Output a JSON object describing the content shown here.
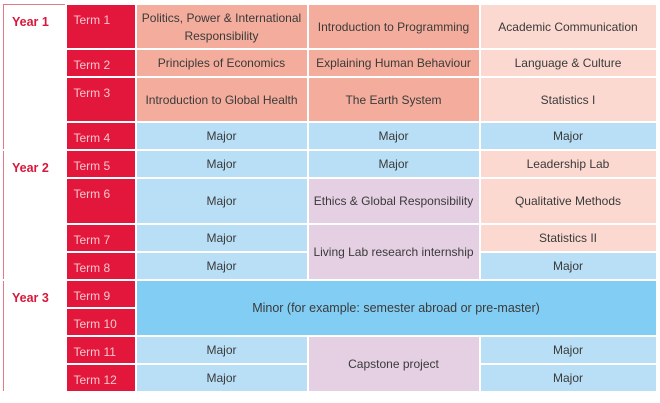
{
  "years": [
    "Year 1",
    "Year 2",
    "Year 3"
  ],
  "terms": [
    "Term 1",
    "Term 2",
    "Term 3",
    "Term 4",
    "Term 5",
    "Term 6",
    "Term 7",
    "Term 8",
    "Term 9",
    "Term 10",
    "Term 11",
    "Term 12"
  ],
  "cells": {
    "t1c1": "Politics, Power & International Responsibility",
    "t1c2": "Introduction to Programming",
    "t1c3": "Academic Communication",
    "t2c1": "Principles of Economics",
    "t2c2": "Explaining Human Behaviour",
    "t2c3": "Language & Culture",
    "t3c1": "Introduction to Global Health",
    "t3c2": "The Earth System",
    "t3c3": "Statistics I",
    "t4c1": "Major",
    "t4c2": "Major",
    "t4c3": "Major",
    "t5c1": "Major",
    "t5c2": "Major",
    "t5c3": "Leadership Lab",
    "t6c1": "Major",
    "t6c2": "Ethics & Global Responsibility",
    "t6c3": "Qualitative Methods",
    "t7c1": "Major",
    "t7c2": "Living Lab research internship",
    "t7c3": "Statistics II",
    "t8c1": "Major",
    "t8c3": "Major",
    "minor": "Minor (for example: semester abroad or pre-master)",
    "t11c1": "Major",
    "t11c2": "Capstone project",
    "t11c3": "Major",
    "t12c1": "Major",
    "t12c3": "Major"
  },
  "colors": {
    "term_red": "#e3173b",
    "year_text": "#d8173a",
    "salmon": "#f4ad9c",
    "light_pink": "#fbd9d0",
    "light_blue": "#b8dff6",
    "lavender": "#e5cfe3",
    "minor_blue": "#82cdf3"
  }
}
